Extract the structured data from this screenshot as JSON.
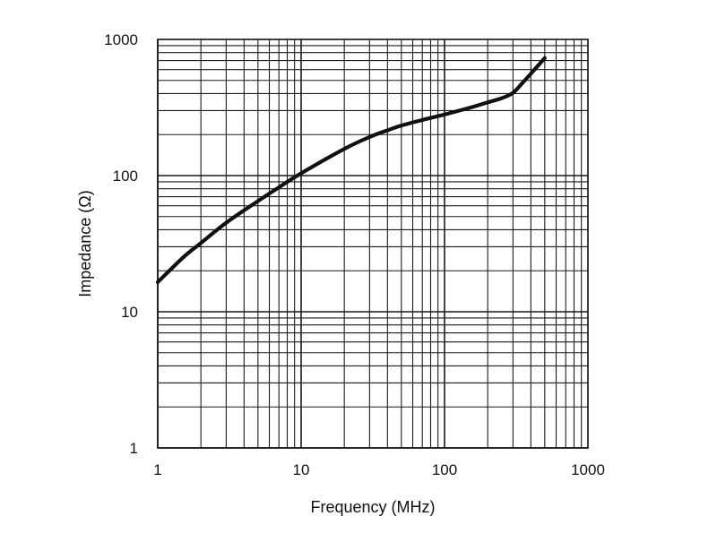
{
  "chart_data": {
    "type": "line",
    "xlabel": "Frequency (MHz)",
    "ylabel": "Impedance (Ω)",
    "x_scale": "log",
    "y_scale": "log",
    "xlim": [
      1,
      1000
    ],
    "ylim": [
      1,
      1000
    ],
    "grid": true,
    "x_ticks": [
      {
        "value": 1,
        "label": "1"
      },
      {
        "value": 10,
        "label": "10"
      },
      {
        "value": 100,
        "label": "100"
      },
      {
        "value": 1000,
        "label": "1000"
      }
    ],
    "y_ticks": [
      {
        "value": 1,
        "label": "1"
      },
      {
        "value": 10,
        "label": "10"
      },
      {
        "value": 100,
        "label": "100"
      },
      {
        "value": 1000,
        "label": "1000"
      }
    ],
    "series": [
      {
        "x": [
          1,
          1.5,
          2,
          3,
          5,
          7,
          10,
          20,
          30,
          40,
          50,
          70,
          100,
          150,
          200,
          250,
          300,
          350,
          400,
          500
        ],
        "y": [
          16.5,
          25,
          32,
          45,
          65,
          82,
          104,
          157,
          192,
          215,
          233,
          256,
          281,
          315,
          345,
          370,
          405,
          480,
          560,
          730
        ]
      }
    ],
    "colors": {
      "line": "#111111",
      "grid": "#1a1a1a",
      "background": "#ffffff"
    }
  }
}
